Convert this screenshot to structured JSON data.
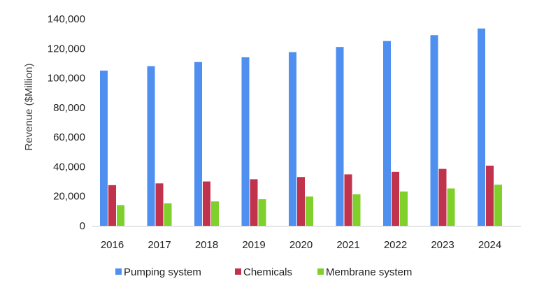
{
  "chart_data": {
    "type": "bar",
    "title": "",
    "xlabel": "",
    "ylabel": "Revenue ($Million)",
    "ylim": [
      0,
      140000
    ],
    "yticks": [
      "0",
      "20,000",
      "40,000",
      "60,000",
      "80,000",
      "100,000",
      "120,000",
      "140,000"
    ],
    "ytick_values": [
      0,
      20000,
      40000,
      60000,
      80000,
      100000,
      120000,
      140000
    ],
    "grid": false,
    "legend_position": "bottom",
    "categories": [
      "2016",
      "2017",
      "2018",
      "2019",
      "2020",
      "2021",
      "2022",
      "2023",
      "2024"
    ],
    "series": [
      {
        "name": "Pumping system",
        "color": "#4f8ff0",
        "values": [
          105000,
          108000,
          110800,
          114000,
          117500,
          121000,
          125000,
          129000,
          133500
        ]
      },
      {
        "name": "Chemicals",
        "color": "#c1334d",
        "values": [
          27500,
          28700,
          30000,
          31500,
          33000,
          34800,
          36500,
          38500,
          40700
        ]
      },
      {
        "name": "Membrane system",
        "color": "#7fd02b",
        "values": [
          14000,
          15200,
          16500,
          18000,
          19800,
          21300,
          23200,
          25300,
          27800
        ]
      }
    ]
  }
}
